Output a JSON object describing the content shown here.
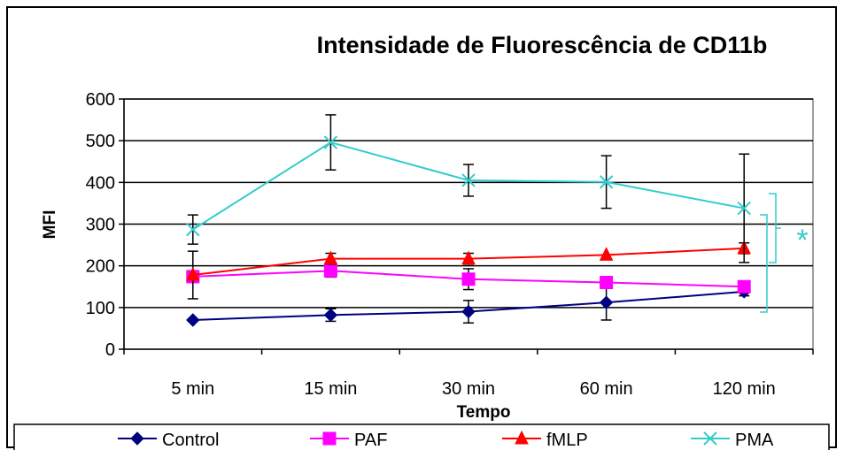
{
  "chart_data": {
    "type": "line",
    "title": "Intensidade de Fluorescência de CD11b",
    "xlabel": "Tempo",
    "ylabel": "MFI",
    "categories": [
      "5 min",
      "15 min",
      "30 min",
      "60 min",
      "120 min"
    ],
    "ylim": [
      0,
      600
    ],
    "yticks": [
      0,
      100,
      200,
      300,
      400,
      500,
      600
    ],
    "grid": "horizontal",
    "legend_position": "bottom",
    "series": [
      {
        "name": "Control",
        "color": "#000080",
        "marker": "diamond",
        "values": [
          70,
          82,
          90,
          112,
          138
        ],
        "error": [
          0,
          15,
          27,
          42,
          10
        ]
      },
      {
        "name": "PAF",
        "color": "#FF00FF",
        "marker": "square",
        "values": [
          174,
          188,
          168,
          160,
          150
        ],
        "error": [
          0,
          15,
          25,
          0,
          0
        ]
      },
      {
        "name": "fMLP",
        "color": "#FF0000",
        "marker": "triangle",
        "values": [
          178,
          217,
          217,
          226,
          242
        ],
        "error": [
          57,
          13,
          13,
          0,
          13
        ]
      },
      {
        "name": "PMA",
        "color": "#33CCCC",
        "marker": "x",
        "values": [
          287,
          496,
          405,
          401,
          338
        ],
        "error": [
          35,
          66,
          38,
          63,
          130
        ]
      }
    ],
    "annotations": [
      {
        "text": "*",
        "color": "#33CCCC"
      }
    ]
  }
}
